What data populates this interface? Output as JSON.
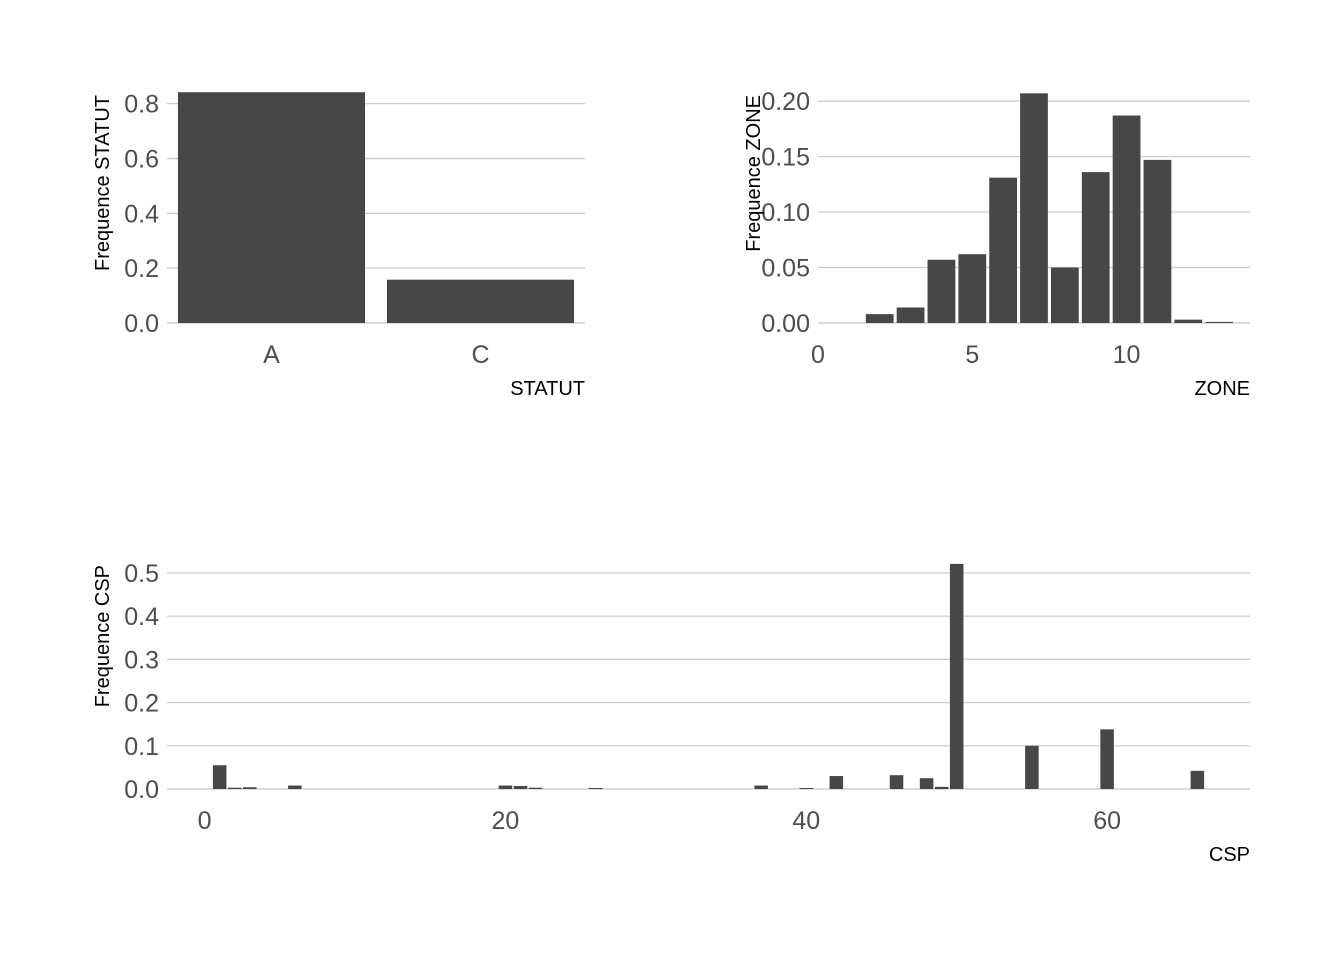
{
  "colors": {
    "bar": "#474747",
    "grid": "#c8c8c8",
    "tick_text": "#4d4d4d",
    "axis_label": "#000000"
  },
  "chart_data": [
    {
      "type": "bar",
      "title": "",
      "categories": [
        "A",
        "C"
      ],
      "values": [
        0.842,
        0.158
      ],
      "xlabel": "STATUT",
      "ylabel": "Frequence STATUT",
      "ylim": [
        0,
        0.85
      ],
      "yticks": [
        0,
        0.2,
        0.4,
        0.6,
        0.8
      ],
      "ytick_labels": [
        "0.0",
        "0.2",
        "0.4",
        "0.6",
        "0.8"
      ],
      "grid": "horizontal"
    },
    {
      "type": "bar",
      "title": "",
      "x": [
        1,
        2,
        3,
        4,
        5,
        6,
        7,
        8,
        9,
        10,
        11,
        12,
        13
      ],
      "values": [
        0.0,
        0.008,
        0.014,
        0.057,
        0.062,
        0.131,
        0.207,
        0.05,
        0.136,
        0.187,
        0.147,
        0.003,
        0.001
      ],
      "xlabel": "ZONE",
      "ylabel": "Frequence ZONE",
      "xlim": [
        0,
        14
      ],
      "ylim": [
        0,
        0.21
      ],
      "xticks": [
        0,
        5,
        10
      ],
      "xtick_labels": [
        "0",
        "5",
        "10"
      ],
      "yticks": [
        0,
        0.05,
        0.1,
        0.15,
        0.2
      ],
      "ytick_labels": [
        "0.00",
        "0.05",
        "0.10",
        "0.15",
        "0.20"
      ],
      "grid": "horizontal"
    },
    {
      "type": "bar",
      "title": "",
      "x": [
        1,
        2,
        3,
        6,
        20,
        21,
        22,
        26,
        37,
        40,
        42,
        46,
        48,
        49,
        50,
        55,
        60,
        66
      ],
      "values": [
        0.055,
        0.003,
        0.004,
        0.008,
        0.008,
        0.007,
        0.003,
        0.002,
        0.008,
        0.002,
        0.03,
        0.032,
        0.025,
        0.005,
        0.521,
        0.1,
        0.138,
        0.042
      ],
      "xlabel": "CSP",
      "ylabel": "Frequence CSP",
      "xlim": [
        -2.5,
        69.5
      ],
      "ylim": [
        0,
        0.53
      ],
      "xticks": [
        0,
        20,
        40,
        60
      ],
      "xtick_labels": [
        "0",
        "20",
        "40",
        "60"
      ],
      "yticks": [
        0,
        0.1,
        0.2,
        0.3,
        0.4,
        0.5
      ],
      "ytick_labels": [
        "0.0",
        "0.1",
        "0.2",
        "0.3",
        "0.4",
        "0.5"
      ],
      "grid": "horizontal"
    }
  ]
}
